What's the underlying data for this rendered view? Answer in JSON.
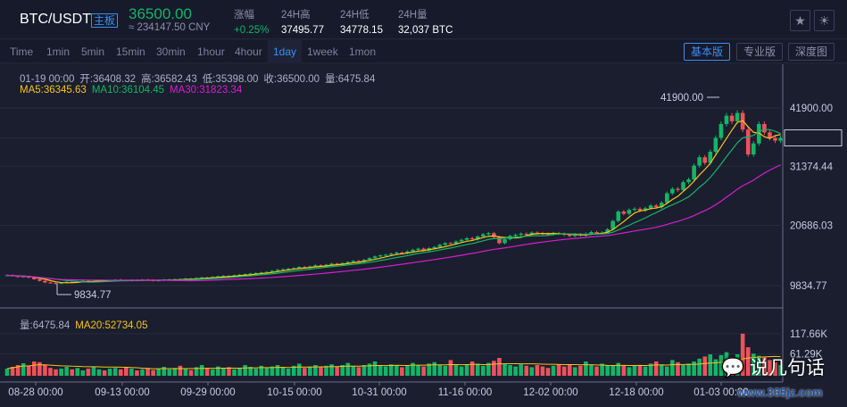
{
  "header": {
    "pair": "BTC/USDT",
    "board": "主板",
    "price": "36500.00",
    "cny": "≈ 234147.50 CNY",
    "stats": [
      {
        "label": "涨幅",
        "value": "+0.25%"
      },
      {
        "label": "24H高",
        "value": "37495.77"
      },
      {
        "label": "24H低",
        "value": "34778.15"
      },
      {
        "label": "24H量",
        "value": "32,037 BTC"
      }
    ],
    "icons": [
      "star-icon",
      "theme-sun-icon"
    ]
  },
  "tabs": [
    "Time",
    "1min",
    "5min",
    "15min",
    "30min",
    "1hour",
    "4hour",
    "1day",
    "1week",
    "1mon"
  ],
  "active_tab": "1day",
  "views": [
    "基本版",
    "专业版",
    "深度图"
  ],
  "active_view": "基本版",
  "info": {
    "date": "01-19 00:00",
    "open": "开:36408.32",
    "high": "高:36582.43",
    "low": "低:35398.00",
    "close": "收:36500.00",
    "volume": "量:6475.84",
    "ma5": "MA5:36345.63",
    "ma10": "MA10:36104.45",
    "ma30": "MA30:31823.34"
  },
  "vol_info": {
    "volume": "量:6475.84",
    "ma20": "MA20:52734.05"
  },
  "colors": {
    "up": "#13b566",
    "down": "#f0515c",
    "ma5": "#f5c518",
    "ma10": "#13b566",
    "ma30": "#d61fd0",
    "accent": "#3a8ff0"
  },
  "chart_data": {
    "type": "candlestick",
    "price_ticks": [
      "41900.00",
      "36500.00",
      "31374.44",
      "20686.03",
      "9834.77"
    ],
    "volume_ticks": [
      "117.66K",
      "61.29K"
    ],
    "x_ticks": [
      "08-28 00:00",
      "09-13 00:00",
      "09-29 00:00",
      "10-15 00:00",
      "10-31 00:00",
      "11-16 00:00",
      "12-02 00:00",
      "12-18 00:00",
      "01-03 00:00"
    ],
    "annotations": {
      "max": "41900.00",
      "min": "9834.77"
    },
    "last_price": "36500.00",
    "closes": [
      11700,
      11600,
      11400,
      11500,
      11300,
      11000,
      10700,
      10400,
      10300,
      10200,
      10350,
      10500,
      10450,
      10600,
      10700,
      10550,
      10650,
      10800,
      10700,
      10750,
      10900,
      10850,
      10700,
      10800,
      10750,
      10900,
      10850,
      10700,
      10800,
      10900,
      10950,
      11000,
      10900,
      11100,
      11050,
      11200,
      11300,
      11250,
      11400,
      11500,
      11600,
      11550,
      11700,
      11800,
      11900,
      12000,
      12100,
      12200,
      12300,
      12500,
      12700,
      12800,
      12900,
      13000,
      13200,
      13100,
      13300,
      13500,
      13400,
      13600,
      13800,
      13700,
      13900,
      14100,
      14300,
      14200,
      14500,
      14800,
      15100,
      15300,
      15400,
      15600,
      15800,
      15700,
      16000,
      16300,
      16500,
      16200,
      16600,
      16800,
      17200,
      17500,
      17400,
      17800,
      18100,
      18400,
      18200,
      18700,
      19100,
      19300,
      18600,
      17500,
      18200,
      18800,
      19000,
      19200,
      19100,
      19400,
      19300,
      19200,
      19100,
      19300,
      19200,
      19000,
      18800,
      19100,
      18900,
      19200,
      19500,
      19300,
      19400,
      20000,
      21500,
      23200,
      22800,
      23500,
      23700,
      23400,
      23800,
      24300,
      24000,
      24800,
      26500,
      27300,
      27100,
      28500,
      29000,
      31500,
      33000,
      32000,
      34000,
      36500,
      39000,
      40500,
      39500,
      41000,
      38000,
      33500,
      35500,
      39000,
      37500,
      36500,
      36000,
      36500
    ],
    "volumes": [
      20,
      25,
      30,
      35,
      28,
      40,
      38,
      30,
      22,
      18,
      20,
      25,
      18,
      22,
      15,
      20,
      26,
      18,
      15,
      20,
      22,
      18,
      25,
      20,
      15,
      18,
      22,
      16,
      20,
      25,
      18,
      22,
      28,
      20,
      16,
      24,
      30,
      22,
      18,
      26,
      20,
      24,
      18,
      22,
      30,
      25,
      20,
      28,
      22,
      26,
      30,
      24,
      20,
      28,
      34,
      22,
      26,
      30,
      24,
      28,
      32,
      26,
      30,
      36,
      28,
      24,
      30,
      34,
      40,
      28,
      26,
      32,
      30,
      24,
      28,
      36,
      30,
      26,
      34,
      38,
      30,
      28,
      44,
      32,
      26,
      30,
      40,
      34,
      28,
      36,
      42,
      50,
      34,
      30,
      26,
      32,
      28,
      24,
      30,
      26,
      22,
      28,
      32,
      26,
      30,
      24,
      28,
      40,
      30,
      26,
      34,
      30,
      28,
      36,
      30,
      24,
      28,
      30,
      26,
      34,
      40,
      32,
      26,
      44,
      38,
      30,
      34,
      40,
      48,
      54,
      60,
      46,
      58,
      66,
      52,
      60,
      118,
      80,
      62,
      56,
      52,
      44,
      38,
      30
    ]
  }
}
